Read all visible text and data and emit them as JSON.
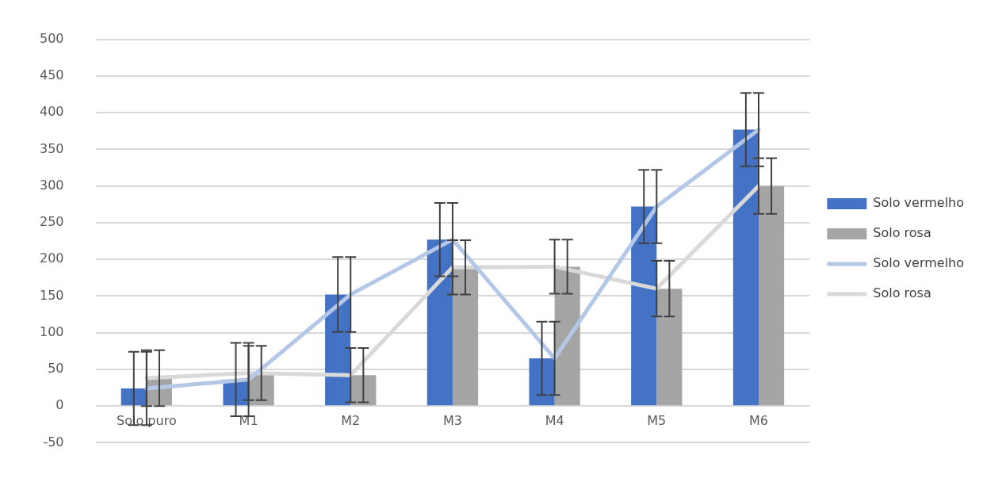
{
  "chart_data": {
    "type": "bar",
    "categories": [
      "Solo puro",
      "M1",
      "M2",
      "M3",
      "M4",
      "M5",
      "M6"
    ],
    "series": [
      {
        "name": "Solo vermelho",
        "color": "#4472c4",
        "values": [
          24,
          36,
          152,
          227,
          65,
          272,
          377
        ],
        "errors": [
          50,
          50,
          51,
          50,
          50,
          50,
          50
        ]
      },
      {
        "name": "Solo rosa",
        "color": "#a5a5a5",
        "values": [
          38,
          45,
          42,
          189,
          190,
          160,
          300
        ],
        "errors": [
          38,
          37,
          37,
          37,
          37,
          38,
          38
        ]
      },
      {
        "name": "Solo vermelho",
        "type": "line",
        "color": "#b4c7e7",
        "values": [
          24,
          36,
          152,
          227,
          65,
          272,
          377
        ],
        "errors": [
          50,
          50,
          51,
          50,
          50,
          50,
          50
        ]
      },
      {
        "name": "Solo rosa",
        "type": "line",
        "color": "#d9d9d9",
        "values": [
          38,
          45,
          42,
          189,
          190,
          160,
          300
        ],
        "errors": [
          38,
          37,
          37,
          37,
          37,
          38,
          38
        ]
      }
    ],
    "ylim": [
      -50,
      500
    ],
    "yticks": [
      -50,
      0,
      50,
      100,
      150,
      200,
      250,
      300,
      350,
      400,
      450,
      500
    ],
    "grid": "y",
    "legend": "right",
    "marker": "none",
    "line_style": "solid"
  }
}
